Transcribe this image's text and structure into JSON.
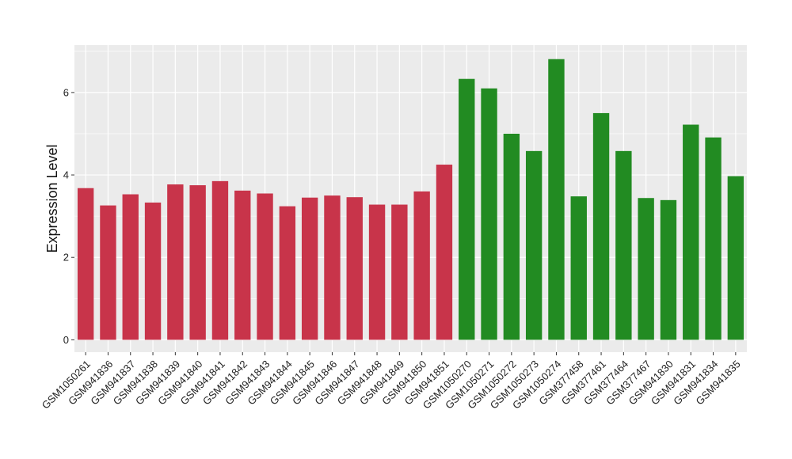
{
  "chart_data": {
    "type": "bar",
    "xlabel": "",
    "ylabel": "Expression Level",
    "ylim": [
      -0.3,
      7.15
    ],
    "yticks": [
      0,
      2,
      4,
      6
    ],
    "grid": true,
    "colors": {
      "group1": "#C8344A",
      "group2": "#228B22",
      "panel": "#EBEBEB",
      "gridline": "#FFFFFF"
    },
    "categories": [
      "GSM1050261",
      "GSM941836",
      "GSM941837",
      "GSM941838",
      "GSM941839",
      "GSM941840",
      "GSM941841",
      "GSM941842",
      "GSM941843",
      "GSM941844",
      "GSM941845",
      "GSM941846",
      "GSM941847",
      "GSM941848",
      "GSM941849",
      "GSM941850",
      "GSM941851",
      "GSM1050270",
      "GSM1050271",
      "GSM1050272",
      "GSM1050273",
      "GSM1050274",
      "GSM377458",
      "GSM377461",
      "GSM377464",
      "GSM377467",
      "GSM941830",
      "GSM941831",
      "GSM941834",
      "GSM941835"
    ],
    "values": [
      3.68,
      3.26,
      3.53,
      3.33,
      3.77,
      3.75,
      3.85,
      3.62,
      3.55,
      3.24,
      3.45,
      3.5,
      3.46,
      3.28,
      3.28,
      3.6,
      4.25,
      6.33,
      6.1,
      5.0,
      4.58,
      6.81,
      3.48,
      5.5,
      4.58,
      3.44,
      3.39,
      5.22,
      4.91,
      3.97
    ],
    "groups": [
      1,
      1,
      1,
      1,
      1,
      1,
      1,
      1,
      1,
      1,
      1,
      1,
      1,
      1,
      1,
      1,
      1,
      2,
      2,
      2,
      2,
      2,
      2,
      2,
      2,
      2,
      2,
      2,
      2,
      2
    ]
  }
}
